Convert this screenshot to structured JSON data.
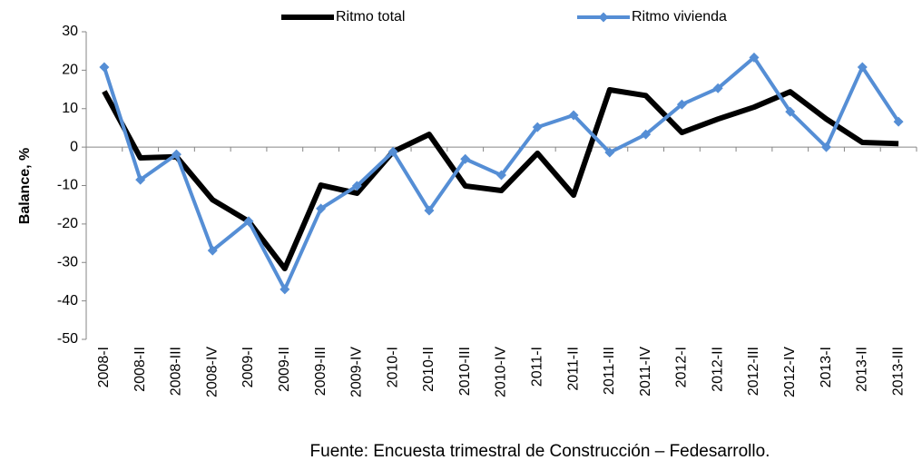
{
  "chart_data": {
    "type": "line",
    "y_label": "Balance, %",
    "source": "Fuente: Encuesta trimestral de Construcción – Fedesarrollo.",
    "categories": [
      "2008-I",
      "2008-II",
      "2008-III",
      "2008-IV",
      "2009-I",
      "2009-II",
      "2009-III",
      "2009-IV",
      "2010-I",
      "2010-II",
      "2010-III",
      "2010-IV",
      "2011-I",
      "2011-II",
      "2011-III",
      "2011-IV",
      "2012-I",
      "2012-II",
      "2012-III",
      "2012-IV",
      "2013-I",
      "2013-II",
      "2013-III"
    ],
    "series": [
      {
        "name": "Ritmo total",
        "color": "#000000",
        "marker": "none",
        "values": [
          14.5,
          -2.8,
          -2.5,
          -13.7,
          -19.3,
          -31.6,
          -9.9,
          -12,
          -1.2,
          3.3,
          -10.1,
          -11.3,
          -1.6,
          -12.5,
          14.9,
          13.4,
          3.8,
          7.3,
          10.4,
          14.4,
          7.3,
          1.2,
          0.9
        ]
      },
      {
        "name": "Ritmo vivienda",
        "color": "#558ed5",
        "marker": "diamond",
        "values": [
          20.8,
          -8.5,
          -1.9,
          -26.9,
          -19.3,
          -37,
          -16,
          -10.1,
          -1.2,
          -16.5,
          -3.1,
          -7.3,
          5.2,
          8.3,
          -1.4,
          3.3,
          11.1,
          15.3,
          23.3,
          9.2,
          0,
          20.8,
          6.6
        ]
      }
    ],
    "ylim": [
      -50,
      30
    ],
    "yticks": [
      -50,
      -40,
      -30,
      -20,
      -10,
      0,
      10,
      20,
      30
    ],
    "grid": false,
    "legend": "top"
  }
}
